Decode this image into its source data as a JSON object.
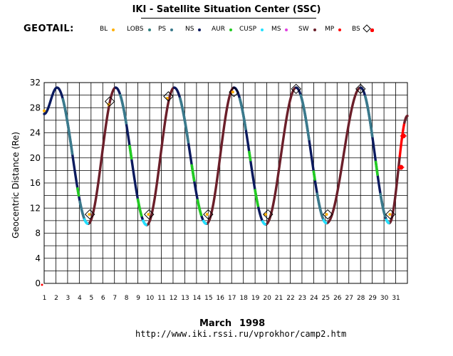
{
  "header": {
    "title": "IKI - Satellite Situation Center (SSC)",
    "satellite": "GEOTAIL:"
  },
  "legend": [
    {
      "label": "BL",
      "color": "#ffb000",
      "shape": "dot"
    },
    {
      "label": "LOBS",
      "color": "#2f7f7f",
      "shape": "dot"
    },
    {
      "label": "PS",
      "color": "#3a7a8c",
      "shape": "dot"
    },
    {
      "label": "NS",
      "color": "#0b1a5e",
      "shape": "dot"
    },
    {
      "label": "AUR",
      "color": "#22cc22",
      "shape": "dot"
    },
    {
      "label": "CUSP",
      "color": "#22e0ff",
      "shape": "dot"
    },
    {
      "label": "MS",
      "color": "#e040e0",
      "shape": "dot"
    },
    {
      "label": "SW",
      "color": "#6b1f2a",
      "shape": "dot"
    },
    {
      "label": "MP",
      "color": "#ff0000",
      "shape": "dot"
    },
    {
      "label": "BS",
      "color": "#ff0000",
      "shape": "diamond"
    }
  ],
  "footer": {
    "month": "March",
    "year": "1998",
    "url": "http://www.iki.rssi.ru/vprokhor/camp2.htm"
  },
  "chart_data": {
    "type": "line",
    "title": "IKI - Satellite Situation Center (SSC)",
    "xlabel": "March 1998",
    "ylabel": "Geocentric Distance (Re)",
    "xlim": [
      1,
      32
    ],
    "ylim": [
      0,
      32
    ],
    "x_ticks": [
      "1",
      "2",
      "3",
      "4",
      "5",
      "6",
      "7",
      "8",
      "9",
      "10",
      "11",
      "12",
      "13",
      "14",
      "15",
      "16",
      "17",
      "18",
      "19",
      "20",
      "21",
      "22",
      "23",
      "24",
      "25",
      "26",
      "27",
      "28",
      "29",
      "30",
      "31"
    ],
    "y_ticks": [
      "0",
      "4",
      "8",
      "12",
      "16",
      "20",
      "24",
      "28",
      "32"
    ],
    "grid": true,
    "colors": {
      "grid": "#000000",
      "sw": "#6b1f2a",
      "ns": "#0b1a5e",
      "ps": "#3a7a8c",
      "aur": "#22cc22",
      "cusp": "#22e0ff",
      "bl": "#ffb000",
      "mp": "#ff0000",
      "bs": "#000000"
    },
    "orbit_keypoints": [
      [
        1.0,
        27
      ],
      [
        2.1,
        31.2
      ],
      [
        4.75,
        9.5
      ],
      [
        7.1,
        31.2
      ],
      [
        9.75,
        9.3
      ],
      [
        12.1,
        31.2
      ],
      [
        14.85,
        9.5
      ],
      [
        17.2,
        31.2
      ],
      [
        19.9,
        9.4
      ],
      [
        22.5,
        31.2
      ],
      [
        25.1,
        9.6
      ],
      [
        28.0,
        31.2
      ],
      [
        30.45,
        9.6
      ],
      [
        32.0,
        26.7
      ]
    ],
    "segments": [
      {
        "region": "NS",
        "from": 1.0,
        "to": 4.75
      },
      {
        "region": "SW",
        "from": 4.75,
        "to": 7.1
      },
      {
        "region": "NS",
        "from": 7.1,
        "to": 9.75
      },
      {
        "region": "SW",
        "from": 9.75,
        "to": 12.1
      },
      {
        "region": "NS",
        "from": 12.1,
        "to": 14.85
      },
      {
        "region": "SW",
        "from": 14.85,
        "to": 17.2
      },
      {
        "region": "NS",
        "from": 17.2,
        "to": 19.9
      },
      {
        "region": "SW",
        "from": 19.9,
        "to": 22.5
      },
      {
        "region": "NS",
        "from": 22.5,
        "to": 25.1
      },
      {
        "region": "SW",
        "from": 25.1,
        "to": 28.0
      },
      {
        "region": "NS",
        "from": 28.0,
        "to": 30.45
      },
      {
        "region": "SW",
        "from": 30.45,
        "to": 31.35
      },
      {
        "region": "MP",
        "from": 31.35,
        "to": 31.75
      },
      {
        "region": "SW",
        "from": 31.75,
        "to": 32.0
      }
    ],
    "highlights": [
      {
        "region": "PS",
        "from": 2.6,
        "to": 3.4
      },
      {
        "region": "AUR",
        "from": 3.85,
        "to": 3.95
      },
      {
        "region": "PS",
        "from": 4.05,
        "to": 4.45
      },
      {
        "region": "PS",
        "from": 7.5,
        "to": 8.0
      },
      {
        "region": "AUR",
        "from": 8.3,
        "to": 8.45
      },
      {
        "region": "AUR",
        "from": 9.0,
        "to": 9.3
      },
      {
        "region": "PS",
        "from": 12.6,
        "to": 13.3
      },
      {
        "region": "AUR",
        "from": 13.6,
        "to": 13.8
      },
      {
        "region": "AUR",
        "from": 14.1,
        "to": 14.4
      },
      {
        "region": "PS",
        "from": 17.7,
        "to": 18.2
      },
      {
        "region": "AUR",
        "from": 18.5,
        "to": 18.6
      },
      {
        "region": "AUR",
        "from": 19.0,
        "to": 19.25
      },
      {
        "region": "PS",
        "from": 22.9,
        "to": 23.6
      },
      {
        "region": "AUR",
        "from": 24.0,
        "to": 24.1
      },
      {
        "region": "PS",
        "from": 24.3,
        "to": 24.8
      },
      {
        "region": "PS",
        "from": 28.4,
        "to": 29.0
      },
      {
        "region": "AUR",
        "from": 29.3,
        "to": 29.45
      },
      {
        "region": "PS",
        "from": 29.7,
        "to": 30.1
      },
      {
        "region": "CUSP",
        "from": 4.45,
        "to": 4.7
      },
      {
        "region": "CUSP",
        "from": 9.45,
        "to": 9.7
      },
      {
        "region": "CUSP",
        "from": 14.6,
        "to": 14.8
      },
      {
        "region": "CUSP",
        "from": 19.65,
        "to": 19.85
      },
      {
        "region": "CUSP",
        "from": 24.85,
        "to": 25.05
      },
      {
        "region": "CUSP",
        "from": 30.2,
        "to": 30.4
      }
    ],
    "bl_points": [
      [
        1.0,
        27.5
      ],
      [
        4.85,
        11.0
      ],
      [
        6.5,
        28.5
      ],
      [
        9.9,
        11.0
      ],
      [
        11.5,
        29.5
      ],
      [
        14.9,
        11.0
      ],
      [
        17.1,
        30.5
      ],
      [
        19.9,
        11.0
      ],
      [
        25.1,
        11.0
      ],
      [
        30.5,
        11.0
      ]
    ],
    "bs_crossings": [
      [
        4.9,
        11.0
      ],
      [
        6.6,
        29.0
      ],
      [
        9.95,
        11.0
      ],
      [
        11.6,
        29.8
      ],
      [
        15.0,
        11.0
      ],
      [
        17.2,
        30.5
      ],
      [
        20.1,
        11.0
      ],
      [
        22.5,
        31.0
      ],
      [
        25.2,
        11.0
      ],
      [
        28.0,
        31.0
      ],
      [
        30.55,
        11.0
      ]
    ],
    "mp_points": [
      [
        31.45,
        18.5
      ],
      [
        31.65,
        23.5
      ]
    ]
  }
}
